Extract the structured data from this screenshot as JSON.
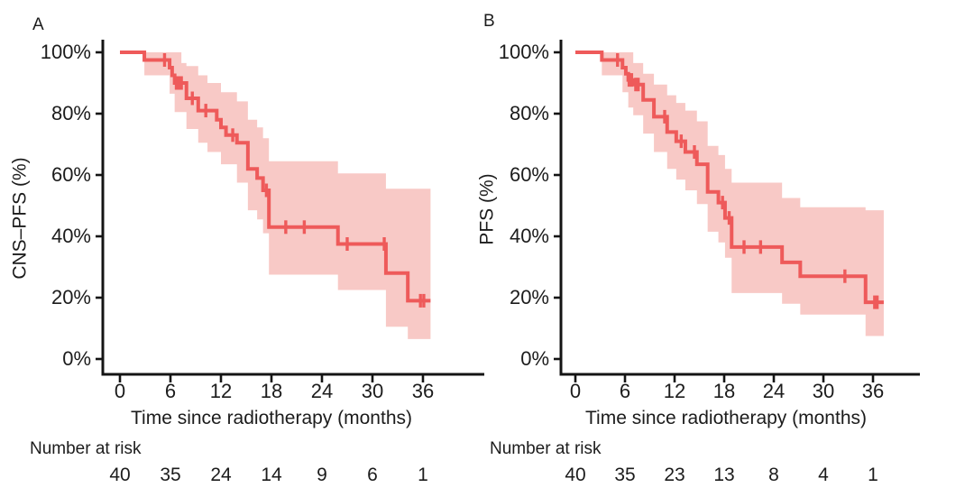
{
  "figure": {
    "background_color": "#ffffff",
    "curve_color": "#ee5a5a",
    "ci_band_color": "#f8c9c6",
    "axis_color": "#141414",
    "text_color": "#1c1c1c"
  },
  "chart_data": [
    {
      "type": "line",
      "subtype": "kaplan_meier_step_with_95ci_band",
      "panel_label": "A",
      "ylabel": "CNS–PFS (%)",
      "xlabel": "Time since radiotherapy (months)",
      "xlim": [
        0,
        39
      ],
      "ylim": [
        0,
        100
      ],
      "grid": false,
      "legend": false,
      "x_ticks": [
        0,
        6,
        12,
        18,
        24,
        30,
        36
      ],
      "y_tick_labels": [
        "0%",
        "20%",
        "40%",
        "60%",
        "80%",
        "100%"
      ],
      "risk_label": "Number at risk",
      "number_at_risk": {
        "times": [
          0,
          6,
          12,
          18,
          24,
          30,
          36
        ],
        "counts": [
          40,
          35,
          24,
          14,
          9,
          6,
          1
        ]
      },
      "end_time": 36.9,
      "survival_steps": [
        [
          0,
          100
        ],
        [
          2.9,
          97.5
        ],
        [
          5.9,
          95
        ],
        [
          6.2,
          92.5
        ],
        [
          6.5,
          90
        ],
        [
          7.9,
          85
        ],
        [
          9.3,
          81
        ],
        [
          11.5,
          78
        ],
        [
          12.0,
          75.5
        ],
        [
          12.6,
          73
        ],
        [
          13.9,
          70.5
        ],
        [
          15.2,
          62
        ],
        [
          16.3,
          59
        ],
        [
          17.0,
          55
        ],
        [
          17.7,
          43
        ],
        [
          25.9,
          37.5
        ],
        [
          31.6,
          28
        ],
        [
          34.2,
          19
        ]
      ],
      "censor_marks": [
        [
          5.3,
          97.5
        ],
        [
          6.7,
          90
        ],
        [
          7.0,
          90
        ],
        [
          7.3,
          90
        ],
        [
          8.6,
          85
        ],
        [
          10.2,
          81
        ],
        [
          13.4,
          73
        ],
        [
          17.4,
          55
        ],
        [
          19.7,
          43
        ],
        [
          21.9,
          43
        ],
        [
          27.0,
          37.5
        ],
        [
          31.4,
          37.5
        ],
        [
          35.7,
          19
        ],
        [
          36.1,
          19
        ]
      ],
      "ci_band": [
        [
          2.9,
          92.5,
          100
        ],
        [
          5.9,
          86.5,
          100
        ],
        [
          6.5,
          80.5,
          100
        ],
        [
          7.3,
          80.5,
          96.5
        ],
        [
          7.9,
          75,
          95.5
        ],
        [
          9.3,
          70.5,
          92.5
        ],
        [
          10.4,
          67.5,
          90
        ],
        [
          12.0,
          63.5,
          87
        ],
        [
          13.9,
          57.5,
          84
        ],
        [
          15.2,
          48.5,
          78
        ],
        [
          16.3,
          45.5,
          75.5
        ],
        [
          17.0,
          41,
          72
        ],
        [
          17.7,
          27.5,
          64.5
        ],
        [
          25.9,
          22.5,
          60.5
        ],
        [
          31.6,
          10.5,
          55.5
        ],
        [
          34.2,
          6.5,
          55.5
        ]
      ]
    },
    {
      "type": "line",
      "subtype": "kaplan_meier_step_with_95ci_band",
      "panel_label": "B",
      "ylabel": "PFS (%)",
      "xlabel": "Time since radiotherapy (months)",
      "xlim": [
        0,
        39
      ],
      "ylim": [
        0,
        100
      ],
      "grid": false,
      "legend": false,
      "x_ticks": [
        0,
        6,
        12,
        18,
        24,
        30,
        36
      ],
      "y_tick_labels": [
        "0%",
        "20%",
        "40%",
        "60%",
        "80%",
        "100%"
      ],
      "risk_label": "Number at risk",
      "number_at_risk": {
        "times": [
          0,
          6,
          12,
          18,
          24,
          30,
          36
        ],
        "counts": [
          40,
          35,
          23,
          13,
          8,
          4,
          1
        ]
      },
      "end_time": 37.3,
      "survival_steps": [
        [
          0,
          100
        ],
        [
          3.2,
          97.5
        ],
        [
          5.7,
          95
        ],
        [
          6.1,
          93
        ],
        [
          6.4,
          91
        ],
        [
          7.0,
          89.5
        ],
        [
          8.2,
          84.5
        ],
        [
          9.5,
          79
        ],
        [
          11.1,
          74
        ],
        [
          12.2,
          71
        ],
        [
          13.3,
          67.5
        ],
        [
          14.7,
          63.5
        ],
        [
          16.0,
          54.5
        ],
        [
          17.3,
          51
        ],
        [
          18.1,
          46
        ],
        [
          18.9,
          36.5
        ],
        [
          25.0,
          31.5
        ],
        [
          27.2,
          27
        ],
        [
          35.1,
          18.5
        ]
      ],
      "censor_marks": [
        [
          5.1,
          97.5
        ],
        [
          6.5,
          91
        ],
        [
          6.8,
          91
        ],
        [
          7.3,
          89.5
        ],
        [
          7.6,
          89.5
        ],
        [
          10.8,
          79
        ],
        [
          12.8,
          71
        ],
        [
          14.4,
          67.5
        ],
        [
          17.8,
          51
        ],
        [
          18.6,
          46
        ],
        [
          20.4,
          36.5
        ],
        [
          22.4,
          36.5
        ],
        [
          32.6,
          27
        ],
        [
          36.2,
          18.5
        ],
        [
          36.5,
          18.5
        ]
      ],
      "ci_band": [
        [
          3.2,
          92.5,
          100
        ],
        [
          5.7,
          87,
          100
        ],
        [
          6.4,
          82,
          100
        ],
        [
          7.0,
          79.5,
          96.5
        ],
        [
          8.2,
          73.5,
          93
        ],
        [
          9.5,
          67.5,
          89.5
        ],
        [
          11.1,
          62,
          86
        ],
        [
          12.2,
          58.5,
          83.5
        ],
        [
          13.3,
          55,
          81
        ],
        [
          14.7,
          50.5,
          77.5
        ],
        [
          16.0,
          41.5,
          69.5
        ],
        [
          17.3,
          38,
          66.5
        ],
        [
          18.1,
          33,
          62
        ],
        [
          18.9,
          21.5,
          57.5
        ],
        [
          25.0,
          18,
          52.5
        ],
        [
          27.2,
          14.5,
          49.5
        ],
        [
          35.1,
          7.5,
          48.5
        ]
      ]
    }
  ]
}
